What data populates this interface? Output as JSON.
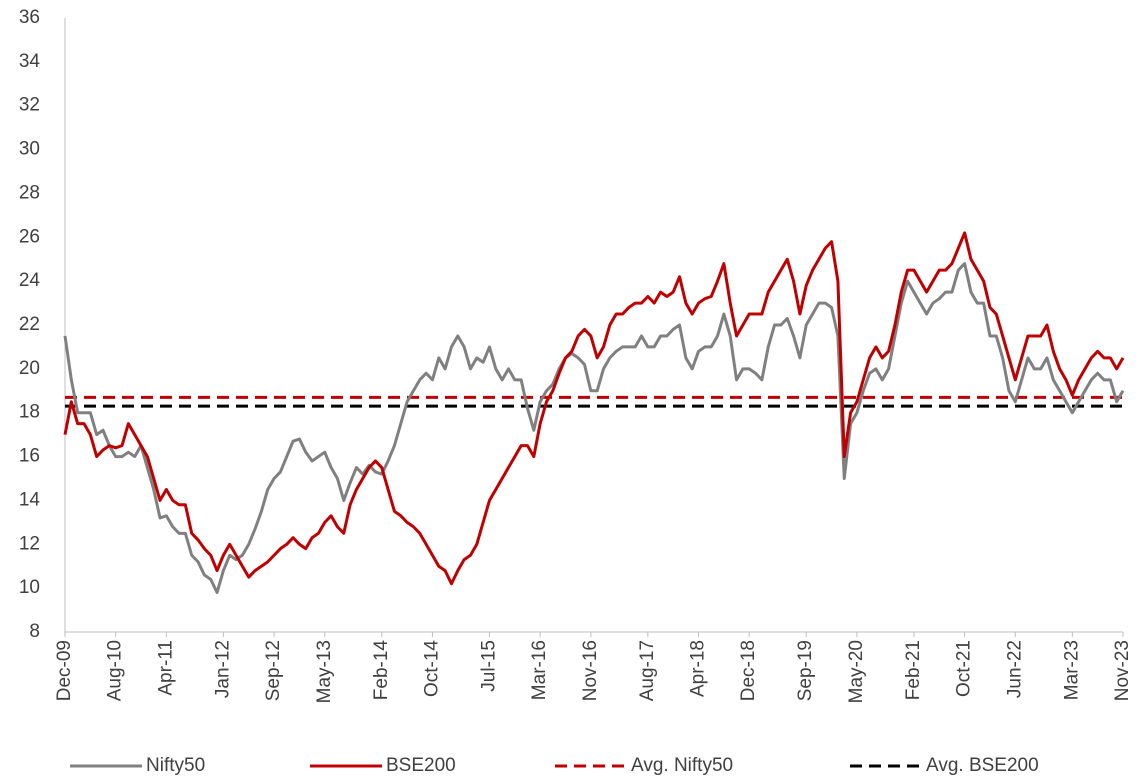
{
  "chart_data": {
    "type": "line",
    "categories": [
      "Dec-09",
      null,
      null,
      null,
      null,
      null,
      null,
      null,
      "Aug-10",
      null,
      null,
      null,
      null,
      null,
      null,
      null,
      "Apr-11",
      null,
      null,
      null,
      null,
      null,
      null,
      null,
      null,
      "Jan-12",
      null,
      null,
      null,
      null,
      null,
      null,
      null,
      "Sep-12",
      null,
      null,
      null,
      null,
      null,
      null,
      null,
      "May-13",
      null,
      null,
      null,
      null,
      null,
      null,
      null,
      null,
      "Feb-14",
      null,
      null,
      null,
      null,
      null,
      null,
      null,
      "Oct-14",
      null,
      null,
      null,
      null,
      null,
      null,
      null,
      null,
      "Jul-15",
      null,
      null,
      null,
      null,
      null,
      null,
      null,
      "Mar-16",
      null,
      null,
      null,
      null,
      null,
      null,
      null,
      "Nov-16",
      null,
      null,
      null,
      null,
      null,
      null,
      null,
      null,
      "Aug-17",
      null,
      null,
      null,
      null,
      null,
      null,
      null,
      "Apr-18",
      null,
      null,
      null,
      null,
      null,
      null,
      null,
      "Dec-18",
      null,
      null,
      null,
      null,
      null,
      null,
      null,
      null,
      "Sep-19",
      null,
      null,
      null,
      null,
      null,
      null,
      null,
      "May-20",
      null,
      null,
      null,
      null,
      null,
      null,
      null,
      null,
      "Feb-21",
      null,
      null,
      null,
      null,
      null,
      null,
      null,
      "Oct-21",
      null,
      null,
      null,
      null,
      null,
      null,
      null,
      "Jun-22",
      null,
      null,
      null,
      null,
      null,
      null,
      null,
      null,
      "Mar-23",
      null,
      null,
      null,
      null,
      null,
      null,
      null,
      "Nov-23"
    ],
    "series": [
      {
        "name": "Nifty50",
        "color": "#808080",
        "values": [
          21.5,
          19.5,
          18.0,
          18.0,
          18.0,
          17.0,
          17.2,
          16.5,
          16.0,
          16.0,
          16.2,
          16.0,
          16.5,
          15.5,
          14.5,
          13.2,
          13.3,
          12.8,
          12.5,
          12.5,
          11.5,
          11.2,
          10.6,
          10.4,
          9.8,
          10.8,
          11.5,
          11.3,
          11.5,
          12.0,
          12.7,
          13.5,
          14.5,
          15.0,
          15.3,
          16.0,
          16.7,
          16.8,
          16.2,
          15.8,
          16.0,
          16.2,
          15.5,
          15.0,
          14.0,
          14.8,
          15.5,
          15.2,
          15.6,
          15.3,
          15.2,
          15.8,
          16.5,
          17.5,
          18.5,
          19.0,
          19.5,
          19.8,
          19.5,
          20.5,
          20.0,
          21.0,
          21.5,
          21.0,
          20.0,
          20.5,
          20.3,
          21.0,
          20.0,
          19.5,
          20.0,
          19.5,
          19.5,
          18.2,
          17.2,
          18.5,
          19.0,
          19.3,
          20.0,
          20.5,
          20.7,
          20.5,
          20.2,
          19.0,
          19.0,
          20.0,
          20.5,
          20.8,
          21.0,
          21.0,
          21.0,
          21.5,
          21.0,
          21.0,
          21.5,
          21.5,
          21.8,
          22.0,
          20.5,
          20.0,
          20.8,
          21.0,
          21.0,
          21.5,
          22.5,
          21.5,
          19.5,
          20.0,
          20.0,
          19.8,
          19.5,
          21.0,
          22.0,
          22.0,
          22.3,
          21.5,
          20.5,
          22.0,
          22.5,
          23.0,
          23.0,
          22.8,
          21.5,
          15.0,
          17.5,
          18.0,
          19.0,
          19.8,
          20.0,
          19.5,
          20.0,
          21.5,
          23.0,
          24.0,
          23.5,
          23.0,
          22.5,
          23.0,
          23.2,
          23.5,
          23.5,
          24.5,
          24.8,
          23.5,
          23.0,
          23.0,
          21.5,
          21.5,
          20.5,
          19.0,
          18.5,
          19.5,
          20.5,
          20.0,
          20.0,
          20.5,
          19.5,
          19.0,
          18.5,
          18.0,
          18.5,
          19.0,
          19.5,
          19.8,
          19.5,
          19.5,
          18.5,
          19.0
        ]
      },
      {
        "name": "BSE200",
        "color": "#c00000",
        "values": [
          17.0,
          18.5,
          17.5,
          17.5,
          17.0,
          16.0,
          16.3,
          16.5,
          16.4,
          16.5,
          17.5,
          17.0,
          16.5,
          16.0,
          15.0,
          14.0,
          14.5,
          14.0,
          13.8,
          13.8,
          12.5,
          12.2,
          11.8,
          11.5,
          10.8,
          11.5,
          12.0,
          11.5,
          11.0,
          10.5,
          10.8,
          11.0,
          11.2,
          11.5,
          11.8,
          12.0,
          12.3,
          12.0,
          11.8,
          12.3,
          12.5,
          13.0,
          13.3,
          12.8,
          12.5,
          13.8,
          14.5,
          15.0,
          15.5,
          15.8,
          15.5,
          14.5,
          13.5,
          13.3,
          13.0,
          12.8,
          12.5,
          12.0,
          11.5,
          11.0,
          10.8,
          10.2,
          10.8,
          11.3,
          11.5,
          12.0,
          13.0,
          14.0,
          14.5,
          15.0,
          15.5,
          16.0,
          16.5,
          16.5,
          16.0,
          17.5,
          18.5,
          19.0,
          19.8,
          20.5,
          20.8,
          21.5,
          21.8,
          21.5,
          20.5,
          21.0,
          22.0,
          22.5,
          22.5,
          22.8,
          23.0,
          23.0,
          23.3,
          23.0,
          23.5,
          23.3,
          23.5,
          24.2,
          23.0,
          22.5,
          23.0,
          23.2,
          23.3,
          24.0,
          24.8,
          23.0,
          21.5,
          22.0,
          22.5,
          22.5,
          22.5,
          23.5,
          24.0,
          24.5,
          25.0,
          24.0,
          22.5,
          23.8,
          24.5,
          25.0,
          25.5,
          25.8,
          24.0,
          16.0,
          18.0,
          18.5,
          19.5,
          20.5,
          21.0,
          20.5,
          20.8,
          22.0,
          23.5,
          24.5,
          24.5,
          24.0,
          23.5,
          24.0,
          24.5,
          24.5,
          24.8,
          25.5,
          26.2,
          25.0,
          24.5,
          24.0,
          22.8,
          22.5,
          21.5,
          20.5,
          19.5,
          20.5,
          21.5,
          21.5,
          21.5,
          22.0,
          20.8,
          20.0,
          19.5,
          18.8,
          19.5,
          20.0,
          20.5,
          20.8,
          20.5,
          20.5,
          20.0,
          20.5
        ]
      }
    ],
    "hlines": [
      {
        "name": "Avg. Nifty50",
        "color": "#c00000",
        "value": 18.7,
        "dashed": true
      },
      {
        "name": "Avg. BSE200",
        "color": "#000000",
        "value": 18.3,
        "dashed": true
      }
    ],
    "ylim": [
      8,
      36
    ],
    "yticks": [
      8,
      10,
      12,
      14,
      16,
      18,
      20,
      22,
      24,
      26,
      28,
      30,
      32,
      34,
      36
    ],
    "grid": false,
    "legend": "bottom"
  }
}
